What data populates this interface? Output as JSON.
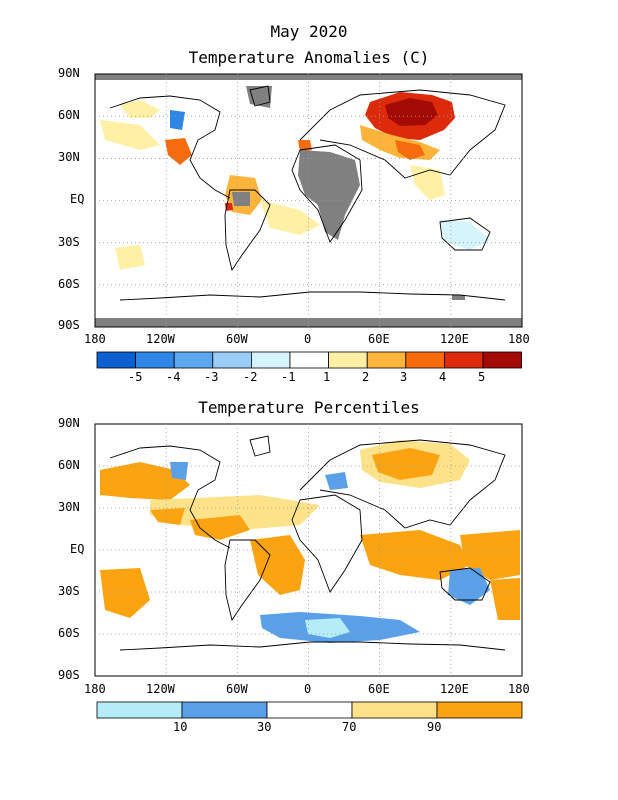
{
  "figure": {
    "month_title": "May 2020",
    "panel1_title": "Temperature Anomalies (C)",
    "panel2_title": "Temperature Percentiles"
  },
  "axes": {
    "lat_labels": [
      "90N",
      "60N",
      "30N",
      "EQ",
      "30S",
      "60S",
      "90S"
    ],
    "lon_labels": [
      "180",
      "120W",
      "60W",
      "0",
      "60E",
      "120E",
      "180"
    ]
  },
  "colors": {
    "missing": "#808080",
    "anom_scale": [
      "#0b5fce",
      "#2e86e6",
      "#5aa8f0",
      "#98cef8",
      "#d6f4fc",
      "#ffffff",
      "#fff0a6",
      "#fdb43b",
      "#f66c0c",
      "#dd2a0a",
      "#a50b05"
    ],
    "pct_scale": [
      "#b4ecf8",
      "#5aa0e8",
      "#ffffff",
      "#fee28a",
      "#fca311"
    ]
  },
  "legend_anomaly": {
    "labels": [
      "-5",
      "-4",
      "-3",
      "-2",
      "-1",
      "1",
      "2",
      "3",
      "4",
      "5"
    ]
  },
  "legend_percentile": {
    "labels": [
      "10",
      "30",
      "70",
      "90"
    ]
  }
}
